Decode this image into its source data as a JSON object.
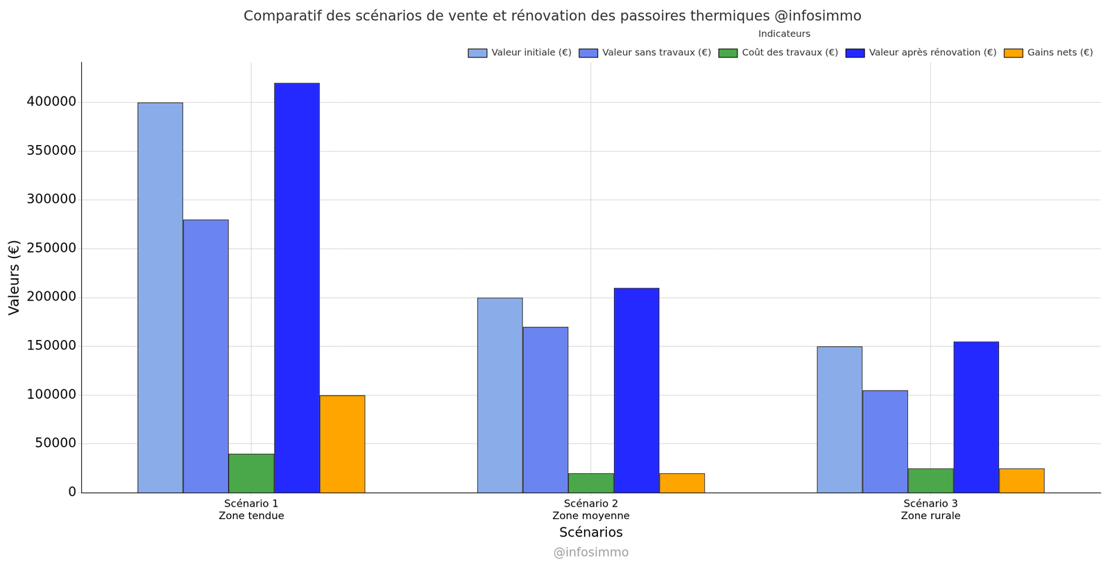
{
  "chart_data": {
    "type": "bar",
    "title": "Comparatif des scénarios de vente et rénovation des passoires thermiques @infosimmo",
    "x_label": "Scénarios",
    "y_label": "Valeurs (€)",
    "watermark": "@infosimmo",
    "legend_title": "Indicateurs",
    "categories": [
      "Scénario 1\nZone tendue",
      "Scénario 2\nZone moyenne",
      "Scénario 3\nZone rurale"
    ],
    "series": [
      {
        "name": "Valeur initiale (€)",
        "color": "#8aade9",
        "values": [
          400000,
          200000,
          150000
        ]
      },
      {
        "name": "Valeur sans travaux (€)",
        "color": "#6a84f0",
        "values": [
          280000,
          170000,
          105000
        ]
      },
      {
        "name": "Coût des travaux (€)",
        "color": "#4aa84a",
        "values": [
          40000,
          20000,
          25000
        ]
      },
      {
        "name": "Valeur après rénovation (€)",
        "color": "#2429ff",
        "values": [
          420000,
          210000,
          155000
        ]
      },
      {
        "name": "Gains nets (€)",
        "color": "#ffa500",
        "values": [
          100000,
          20000,
          25000
        ]
      }
    ],
    "ylim": [
      0,
      441000
    ],
    "yticks": [
      0,
      50000,
      100000,
      150000,
      200000,
      250000,
      300000,
      350000,
      400000
    ],
    "grid": true,
    "legend": "upper right"
  }
}
